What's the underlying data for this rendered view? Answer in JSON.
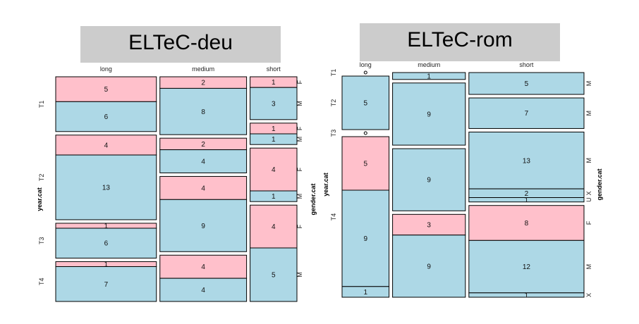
{
  "colors": {
    "F": "#ffc0cb",
    "M": "#add8e6",
    "X": "#add8e6",
    "U": "#add8e6",
    "title_bg": "#cccccc"
  },
  "chart_data": [
    {
      "type": "mosaic",
      "title": "ELTeC-deu",
      "xlabel": "",
      "ylabel": "year.cat",
      "zlabel": "gender.cat",
      "length_categories": [
        "long",
        "medium",
        "short"
      ],
      "year_categories": [
        "T1",
        "T2",
        "T3",
        "T4"
      ],
      "cells": [
        {
          "length": "long",
          "year": "T1",
          "gender": "F",
          "value": 5
        },
        {
          "length": "long",
          "year": "T1",
          "gender": "M",
          "value": 6
        },
        {
          "length": "long",
          "year": "T2",
          "gender": "F",
          "value": 4
        },
        {
          "length": "long",
          "year": "T2",
          "gender": "M",
          "value": 13
        },
        {
          "length": "long",
          "year": "T3",
          "gender": "F",
          "value": 1
        },
        {
          "length": "long",
          "year": "T3",
          "gender": "M",
          "value": 6
        },
        {
          "length": "long",
          "year": "T4",
          "gender": "F",
          "value": 1
        },
        {
          "length": "long",
          "year": "T4",
          "gender": "M",
          "value": 7
        },
        {
          "length": "medium",
          "year": "T1",
          "gender": "F",
          "value": 2
        },
        {
          "length": "medium",
          "year": "T1",
          "gender": "M",
          "value": 8
        },
        {
          "length": "medium",
          "year": "T2",
          "gender": "F",
          "value": 2
        },
        {
          "length": "medium",
          "year": "T2",
          "gender": "M",
          "value": 4
        },
        {
          "length": "medium",
          "year": "T3",
          "gender": "F",
          "value": 4
        },
        {
          "length": "medium",
          "year": "T3",
          "gender": "M",
          "value": 9
        },
        {
          "length": "medium",
          "year": "T4",
          "gender": "F",
          "value": 4
        },
        {
          "length": "medium",
          "year": "T4",
          "gender": "M",
          "value": 4
        },
        {
          "length": "short",
          "year": "T1",
          "gender": "F",
          "value": 1
        },
        {
          "length": "short",
          "year": "T1",
          "gender": "M",
          "value": 3
        },
        {
          "length": "short",
          "year": "T2",
          "gender": "F",
          "value": 1
        },
        {
          "length": "short",
          "year": "T2",
          "gender": "M",
          "value": 1
        },
        {
          "length": "short",
          "year": "T3",
          "gender": "F",
          "value": 4
        },
        {
          "length": "short",
          "year": "T3",
          "gender": "M",
          "value": 1
        },
        {
          "length": "short",
          "year": "T4",
          "gender": "F",
          "value": 4
        },
        {
          "length": "short",
          "year": "T4",
          "gender": "M",
          "value": 5
        }
      ]
    },
    {
      "type": "mosaic",
      "title": "ELTeC-rom",
      "xlabel": "",
      "ylabel": "year.cat",
      "zlabel": "gender.cat",
      "length_categories": [
        "long",
        "medium",
        "short"
      ],
      "year_categories": [
        "T1",
        "T2",
        "T3",
        "T4"
      ],
      "cells": [
        {
          "length": "long",
          "year": "T1",
          "gender": "M",
          "value": 0
        },
        {
          "length": "long",
          "year": "T2",
          "gender": "M",
          "value": 5
        },
        {
          "length": "long",
          "year": "T3",
          "gender": "M",
          "value": 0
        },
        {
          "length": "long",
          "year": "T4",
          "gender": "F",
          "value": 5
        },
        {
          "length": "long",
          "year": "T4",
          "gender": "M",
          "value": 9
        },
        {
          "length": "long",
          "year": "T4",
          "gender": "X",
          "value": 1
        },
        {
          "length": "medium",
          "year": "T1",
          "gender": "M",
          "value": 1
        },
        {
          "length": "medium",
          "year": "T2",
          "gender": "M",
          "value": 9
        },
        {
          "length": "medium",
          "year": "T3",
          "gender": "M",
          "value": 9
        },
        {
          "length": "medium",
          "year": "T4",
          "gender": "F",
          "value": 3
        },
        {
          "length": "medium",
          "year": "T4",
          "gender": "M",
          "value": 9
        },
        {
          "length": "short",
          "year": "T1",
          "gender": "M",
          "value": 5
        },
        {
          "length": "short",
          "year": "T2",
          "gender": "M",
          "value": 7
        },
        {
          "length": "short",
          "year": "T3",
          "gender": "M",
          "value": 13
        },
        {
          "length": "short",
          "year": "T3",
          "gender": "X",
          "value": 2
        },
        {
          "length": "short",
          "year": "T3",
          "gender": "U",
          "value": 1
        },
        {
          "length": "short",
          "year": "T4",
          "gender": "F",
          "value": 8
        },
        {
          "length": "short",
          "year": "T4",
          "gender": "M",
          "value": 12
        },
        {
          "length": "short",
          "year": "T4",
          "gender": "X",
          "value": 1
        }
      ]
    }
  ]
}
